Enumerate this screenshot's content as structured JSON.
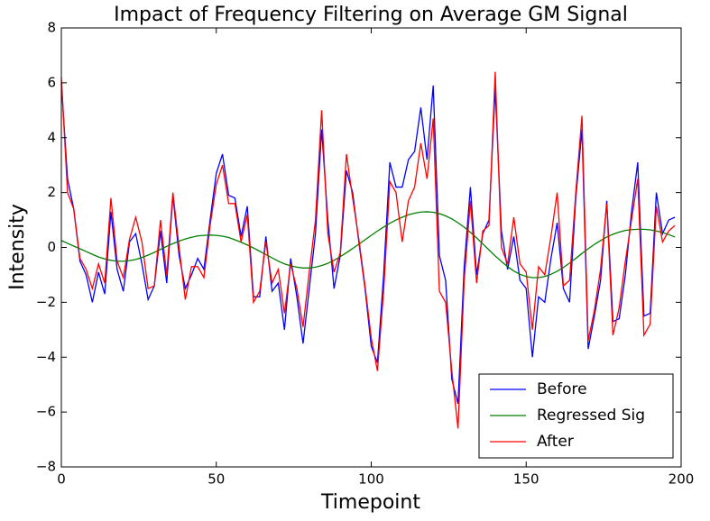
{
  "chart_data": {
    "type": "line",
    "title": "Impact of Frequency Filtering on Average GM Signal",
    "xlabel": "Timepoint",
    "ylabel": "Intensity",
    "x": [
      0,
      2,
      4,
      6,
      8,
      10,
      12,
      14,
      16,
      18,
      20,
      22,
      24,
      26,
      28,
      30,
      32,
      34,
      36,
      38,
      40,
      42,
      44,
      46,
      48,
      50,
      52,
      54,
      56,
      58,
      60,
      62,
      64,
      66,
      68,
      70,
      72,
      74,
      76,
      78,
      80,
      82,
      84,
      86,
      88,
      90,
      92,
      94,
      96,
      98,
      100,
      102,
      104,
      106,
      108,
      110,
      112,
      114,
      116,
      118,
      120,
      122,
      124,
      126,
      128,
      130,
      132,
      134,
      136,
      138,
      140,
      142,
      144,
      146,
      148,
      150,
      152,
      154,
      156,
      158,
      160,
      162,
      164,
      166,
      168,
      170,
      172,
      174,
      176,
      178,
      180,
      182,
      184,
      186,
      188,
      190,
      192,
      194,
      196,
      198
    ],
    "series": [
      {
        "name": "Before",
        "color": "#0000ff",
        "values": [
          6.0,
          2.5,
          1.4,
          -0.5,
          -1.0,
          -2.0,
          -0.9,
          -1.7,
          1.3,
          -0.8,
          -1.6,
          0.2,
          0.5,
          -0.6,
          -1.9,
          -1.4,
          0.6,
          -1.3,
          1.9,
          -0.3,
          -1.5,
          -1.0,
          -0.4,
          -0.8,
          1.0,
          2.7,
          3.4,
          1.9,
          1.8,
          0.4,
          1.5,
          -1.8,
          -1.8,
          0.4,
          -1.6,
          -1.3,
          -3.0,
          -0.4,
          -1.8,
          -3.5,
          -1.5,
          0.5,
          4.3,
          1.0,
          -1.5,
          -0.3,
          2.8,
          2.0,
          0.2,
          -1.5,
          -3.6,
          -4.2,
          -1.0,
          3.1,
          2.2,
          2.2,
          3.2,
          3.5,
          5.1,
          3.2,
          5.9,
          -0.3,
          -1.2,
          -4.8,
          -5.7,
          -0.7,
          2.2,
          -1.0,
          0.5,
          1.0,
          5.8,
          0.6,
          -0.8,
          0.4,
          -1.2,
          -1.5,
          -4.0,
          -1.8,
          -2.0,
          -0.4,
          0.9,
          -1.5,
          -2.0,
          1.8,
          4.3,
          -3.7,
          -2.5,
          -1.2,
          1.7,
          -2.7,
          -2.6,
          -1.0,
          1.3,
          3.1,
          -2.5,
          -2.4,
          2.0,
          0.5,
          1.0,
          1.1
        ]
      },
      {
        "name": "Regressed Sig",
        "color": "#008000",
        "values": [
          0.25,
          0.15,
          0.05,
          -0.05,
          -0.15,
          -0.25,
          -0.35,
          -0.42,
          -0.47,
          -0.5,
          -0.5,
          -0.48,
          -0.44,
          -0.37,
          -0.28,
          -0.18,
          -0.07,
          0.04,
          0.14,
          0.23,
          0.31,
          0.37,
          0.42,
          0.44,
          0.45,
          0.44,
          0.41,
          0.36,
          0.28,
          0.19,
          0.09,
          -0.02,
          -0.14,
          -0.26,
          -0.38,
          -0.5,
          -0.6,
          -0.67,
          -0.72,
          -0.75,
          -0.75,
          -0.72,
          -0.66,
          -0.58,
          -0.47,
          -0.34,
          -0.19,
          -0.04,
          0.12,
          0.28,
          0.44,
          0.6,
          0.74,
          0.88,
          1.0,
          1.1,
          1.19,
          1.25,
          1.29,
          1.3,
          1.28,
          1.23,
          1.15,
          1.04,
          0.9,
          0.74,
          0.55,
          0.35,
          0.13,
          -0.09,
          -0.31,
          -0.51,
          -0.7,
          -0.86,
          -0.98,
          -1.06,
          -1.1,
          -1.1,
          -1.06,
          -0.98,
          -0.87,
          -0.73,
          -0.57,
          -0.4,
          -0.22,
          -0.05,
          0.11,
          0.25,
          0.38,
          0.48,
          0.56,
          0.62,
          0.65,
          0.66,
          0.66,
          0.64,
          0.6,
          0.54,
          0.47,
          0.38
        ]
      },
      {
        "name": "After",
        "color": "#ff0000",
        "values": [
          6.2,
          2.0,
          1.4,
          -0.4,
          -0.8,
          -1.5,
          -0.6,
          -1.3,
          1.8,
          -0.5,
          -1.1,
          0.3,
          1.1,
          0.2,
          -1.5,
          -1.4,
          1.0,
          -1.0,
          2.0,
          0.0,
          -1.9,
          -0.7,
          -0.7,
          -1.1,
          0.8,
          2.3,
          3.0,
          1.6,
          1.6,
          0.2,
          1.2,
          -2.0,
          -1.6,
          0.2,
          -1.3,
          -0.8,
          -2.4,
          -0.6,
          -1.5,
          -2.9,
          -0.9,
          1.0,
          5.0,
          0.5,
          -0.9,
          -0.2,
          3.4,
          1.8,
          0.3,
          -1.4,
          -3.3,
          -4.5,
          -1.6,
          2.4,
          2.0,
          0.2,
          1.7,
          2.2,
          3.8,
          2.5,
          4.7,
          -1.6,
          -2.0,
          -4.5,
          -6.6,
          -1.2,
          1.7,
          -1.3,
          0.6,
          0.8,
          6.4,
          0.0,
          -0.6,
          1.1,
          -0.6,
          -0.9,
          -3.0,
          -0.7,
          -1.0,
          0.4,
          2.0,
          -1.4,
          -1.2,
          2.0,
          4.8,
          -3.4,
          -2.3,
          -0.8,
          1.6,
          -3.2,
          -2.2,
          -0.5,
          1.0,
          2.5,
          -3.2,
          -2.8,
          1.5,
          0.2,
          0.6,
          0.8
        ]
      }
    ],
    "xlim": [
      0,
      200
    ],
    "xticks": [
      0,
      50,
      100,
      150,
      200
    ],
    "ylim": [
      -8,
      8
    ],
    "yticks": [
      {
        "value": -8,
        "label": "−8"
      },
      {
        "value": -6,
        "label": "−6"
      },
      {
        "value": -4,
        "label": "−4"
      },
      {
        "value": -2,
        "label": "−2"
      },
      0,
      2,
      4,
      6,
      8
    ],
    "legend": "lower right",
    "grid": false
  }
}
